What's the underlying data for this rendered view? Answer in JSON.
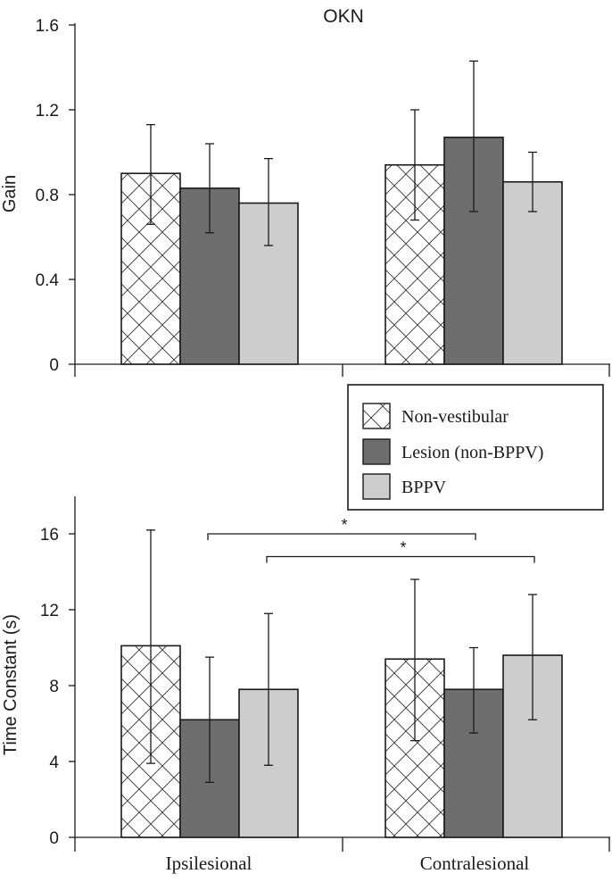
{
  "chart_data": [
    {
      "type": "bar",
      "title": "OKN",
      "xlabel": "",
      "ylabel": "Gain",
      "ylim": [
        0,
        1.6
      ],
      "yticks": [
        "0",
        "0.4",
        "0.8",
        "1.2",
        "1.6"
      ],
      "categories": [
        "Ipsilesional",
        "Contralesional"
      ],
      "series": [
        {
          "name": "Non-vestibular",
          "values": [
            0.9,
            0.94
          ],
          "err_low": [
            0.66,
            0.68
          ],
          "err_high": [
            1.13,
            1.2
          ]
        },
        {
          "name": "Lesion (non-BPPV)",
          "values": [
            0.83,
            1.07
          ],
          "err_low": [
            0.62,
            0.72
          ],
          "err_high": [
            1.04,
            1.43
          ]
        },
        {
          "name": "BPPV",
          "values": [
            0.76,
            0.86
          ],
          "err_low": [
            0.56,
            0.72
          ],
          "err_high": [
            0.97,
            1.0
          ]
        }
      ]
    },
    {
      "type": "bar",
      "title": "",
      "xlabel": "",
      "ylabel": "Time Constant (s)",
      "ylim": [
        0,
        18
      ],
      "yticks": [
        "0",
        "4",
        "8",
        "12",
        "16"
      ],
      "categories": [
        "Ipsilesional",
        "Contralesional"
      ],
      "series": [
        {
          "name": "Non-vestibular",
          "values": [
            10.1,
            9.4
          ],
          "err_low": [
            3.9,
            5.1
          ],
          "err_high": [
            16.2,
            13.6
          ]
        },
        {
          "name": "Lesion (non-BPPV)",
          "values": [
            6.2,
            7.8
          ],
          "err_low": [
            2.9,
            5.5
          ],
          "err_high": [
            9.5,
            10.0
          ]
        },
        {
          "name": "BPPV",
          "values": [
            7.8,
            9.6
          ],
          "err_low": [
            3.8,
            6.2
          ],
          "err_high": [
            11.8,
            12.8
          ]
        }
      ],
      "significance": [
        {
          "label": "*",
          "from": {
            "category": 0,
            "series": 1
          },
          "to": {
            "category": 1,
            "series": 1
          },
          "level": 16.0
        },
        {
          "label": "*",
          "from": {
            "category": 0,
            "series": 2
          },
          "to": {
            "category": 1,
            "series": 2
          },
          "level": 14.8
        }
      ]
    }
  ],
  "legend": {
    "position": "between-panels-right",
    "items": [
      {
        "label": "Non-vestibular",
        "style": "hatch"
      },
      {
        "label": "Lesion (non-BPPV)",
        "style": "dark"
      },
      {
        "label": "BPPV",
        "style": "light"
      }
    ]
  },
  "colors": {
    "nonvestibular": "#ffffff",
    "lesion": "#6e6e6e",
    "bppv": "#cdcdcd",
    "stroke": "#1a1a1a"
  }
}
